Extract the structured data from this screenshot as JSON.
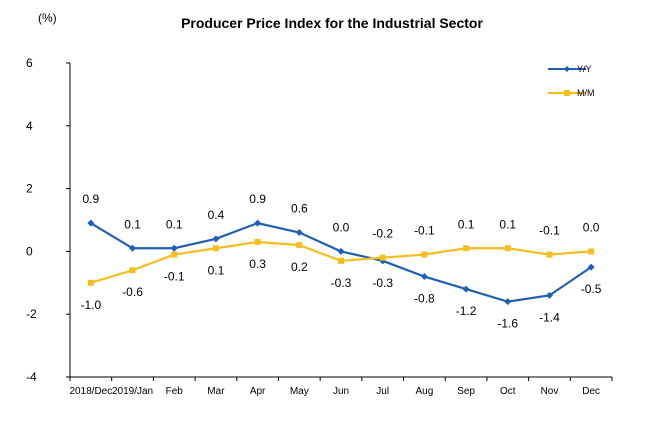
{
  "chart_data": {
    "type": "line",
    "title": "Producer Price Index for the Industrial Sector",
    "unit_label": "(%)",
    "categories": [
      "2018/Dec",
      "2019/Jan",
      "Feb",
      "Mar",
      "Apr",
      "May",
      "Jun",
      "Jul",
      "Aug",
      "Sep",
      "Oct",
      "Nov",
      "Dec"
    ],
    "ylim": [
      -4,
      6
    ],
    "yticks": [
      -4,
      -2,
      0,
      2,
      4,
      6
    ],
    "grid": false,
    "legend_position": "top-right",
    "series": [
      {
        "name": "Y/Y",
        "color": "#1F5FB4",
        "marker": "diamond",
        "values": [
          0.9,
          0.1,
          0.1,
          0.4,
          0.9,
          0.6,
          0.0,
          -0.3,
          -0.8,
          -1.2,
          -1.6,
          -1.4,
          -0.5
        ],
        "labels": [
          "0.9",
          "0.1",
          "0.1",
          "0.4",
          "0.9",
          "0.6",
          "0.0",
          "-0.3",
          "-0.8",
          "-1.2",
          "-1.6",
          "-1.4",
          "-0.5"
        ]
      },
      {
        "name": "M/M",
        "color": "#F5BE1E",
        "marker": "square",
        "values": [
          -1.0,
          -0.6,
          -0.1,
          0.1,
          0.3,
          0.2,
          -0.3,
          -0.2,
          -0.1,
          0.1,
          0.1,
          -0.1,
          0.0
        ],
        "labels": [
          "-1.0",
          "-0.6",
          "-0.1",
          "0.1",
          "0.3",
          "0.2",
          "-0.3",
          "-0.2",
          "-0.1",
          "0.1",
          "0.1",
          "-0.1",
          "0.0"
        ]
      }
    ]
  }
}
